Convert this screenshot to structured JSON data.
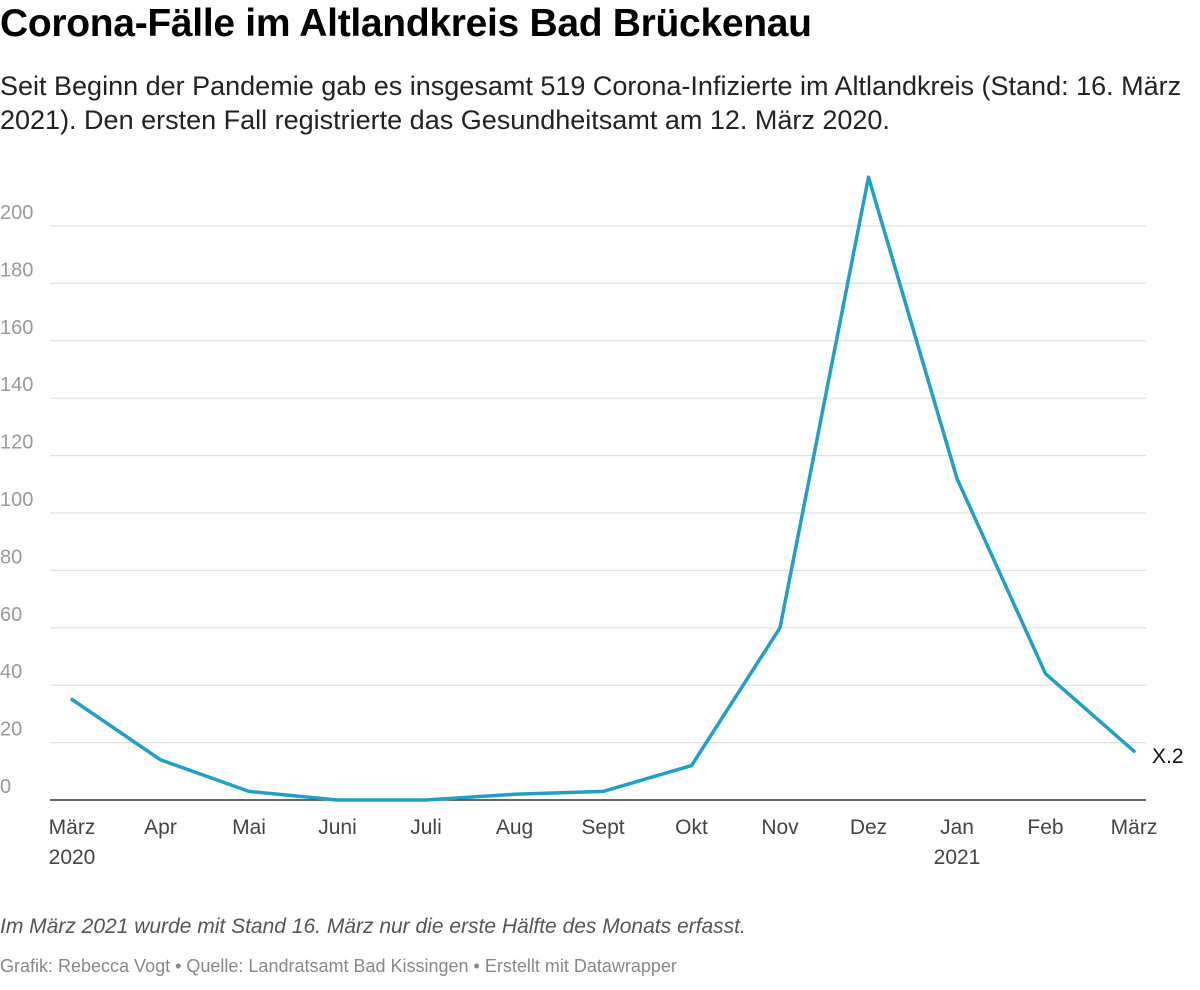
{
  "header": {
    "title": "Corona-Fälle im Altlandkreis Bad Brückenau",
    "subtitle": "Seit Beginn der Pandemie gab es insgesamt 519 Corona-Infizierte im Altlandkreis (Stand: 16. März 2021). Den ersten Fall registrierte das Gesundheitsamt am 12. März 2020."
  },
  "footer": {
    "note": "Im März 2021 wurde mit Stand 16. März nur die erste Hälfte des Monats erfasst.",
    "credits": "Grafik: Rebecca Vogt • Quelle: Landratsamt Bad Kissingen • Erstellt mit Datawrapper"
  },
  "colors": {
    "line": "#1fa0c8",
    "grid": "#e0e0e0",
    "baseline": "#333333"
  },
  "chart_data": {
    "type": "line",
    "title": "Corona-Fälle im Altlandkreis Bad Brückenau",
    "xlabel": "",
    "ylabel": "",
    "ylim": [
      0,
      210
    ],
    "yticks": [
      0,
      20,
      40,
      60,
      80,
      100,
      120,
      140,
      160,
      180,
      200
    ],
    "grid": true,
    "categories": [
      "März",
      "Apr",
      "Mai",
      "Juni",
      "Juli",
      "Aug",
      "Sept",
      "Okt",
      "Nov",
      "Dez",
      "Jan",
      "Feb",
      "März"
    ],
    "year_labels": {
      "0": "2020",
      "10": "2021"
    },
    "series": [
      {
        "name": "Corona-Fälle",
        "values": [
          35,
          14,
          3,
          0,
          0,
          2,
          3,
          12,
          60,
          217,
          112,
          44,
          17
        ],
        "end_label": "X.2"
      }
    ]
  }
}
